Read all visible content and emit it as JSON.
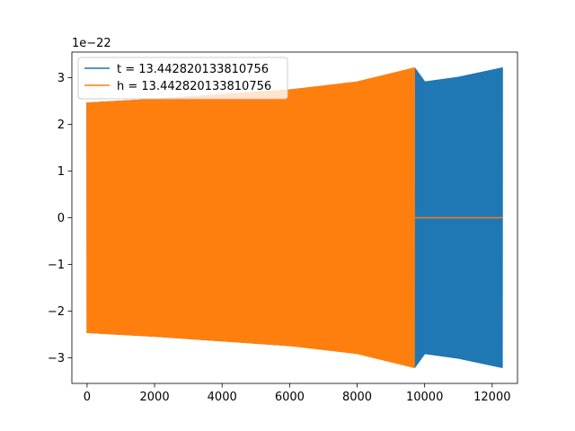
{
  "chart_data": {
    "type": "line",
    "title": "",
    "xlabel": "",
    "ylabel": "",
    "xlim": [
      -450,
      12750
    ],
    "ylim": [
      -3.55,
      3.55
    ],
    "y_offset_label": "1e−22",
    "x_ticks": [
      0,
      2000,
      4000,
      6000,
      8000,
      10000,
      12000
    ],
    "x_tick_labels": [
      "0",
      "2000",
      "4000",
      "6000",
      "8000",
      "10000",
      "12000"
    ],
    "y_ticks": [
      -3,
      -2,
      -1,
      0,
      1,
      2,
      3
    ],
    "y_tick_labels": [
      "−3",
      "−2",
      "−1",
      "0",
      "1",
      "2",
      "3"
    ],
    "grid": false,
    "legend_position": "top-left",
    "series": [
      {
        "name": "t = 13.442820133810756",
        "color": "#1f77b4",
        "x": [
          0,
          2000,
          4000,
          6000,
          8000,
          9700,
          10000,
          11000,
          12300
        ],
        "envelope_upper": [
          2.47,
          2.55,
          2.65,
          2.75,
          2.87,
          3.22,
          2.92,
          3.02,
          3.22
        ],
        "envelope_lower": [
          -2.47,
          -2.55,
          -2.65,
          -2.75,
          -2.87,
          -3.22,
          -2.92,
          -3.02,
          -3.22
        ]
      },
      {
        "name": "h = 13.442820133810756",
        "color": "#ff7f0e",
        "x": [
          0,
          2000,
          4000,
          6000,
          8000,
          9700,
          9701,
          12300
        ],
        "envelope_upper": [
          2.47,
          2.55,
          2.65,
          2.75,
          2.92,
          3.22,
          0,
          0
        ],
        "envelope_lower": [
          -2.47,
          -2.55,
          -2.65,
          -2.75,
          -2.92,
          -3.22,
          0,
          0
        ]
      }
    ]
  }
}
